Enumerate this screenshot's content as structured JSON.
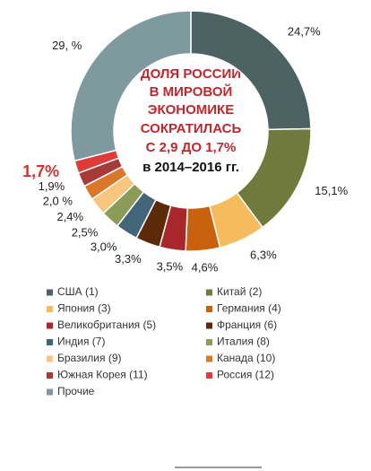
{
  "chart_data": {
    "type": "donut",
    "center_text": [
      "ДОЛЯ РОССИИ",
      "В МИРОВОЙ",
      "ЭКОНОМИКЕ",
      "СОКРАТИЛАСЬ",
      "С 2,9 ДО 1,7%",
      "в 2014–2016 гг."
    ],
    "categories": [
      "США (1)",
      "Китай (2)",
      "Япония (3)",
      "Германия (4)",
      "Великобритания (5)",
      "Франция (6)",
      "Индия (7)",
      "Италия (8)",
      "Бразилия (9)",
      "Канада (10)",
      "Южная Корея (11)",
      "Россия (12)",
      "Прочие"
    ],
    "values": [
      24.7,
      15.1,
      6.3,
      4.6,
      3.5,
      3.3,
      3.0,
      2.5,
      2.4,
      2.0,
      1.9,
      1.7,
      29
    ],
    "value_labels": [
      "24,7%",
      "15,1%",
      "6,3%",
      "4,6%",
      "3,5%",
      "3,3%",
      "3,0%",
      "2,5%",
      "2,4%",
      "2,0 %",
      "1,9%",
      "1,7%",
      "29, %"
    ],
    "colors": [
      "#4d6262",
      "#6f7a3c",
      "#f6bb5c",
      "#c9620f",
      "#a8272b",
      "#5c2a08",
      "#43657a",
      "#8c9b58",
      "#f8c57e",
      "#d9782a",
      "#a63a3a",
      "#e03b3b",
      "#7f9a9e"
    ]
  }
}
